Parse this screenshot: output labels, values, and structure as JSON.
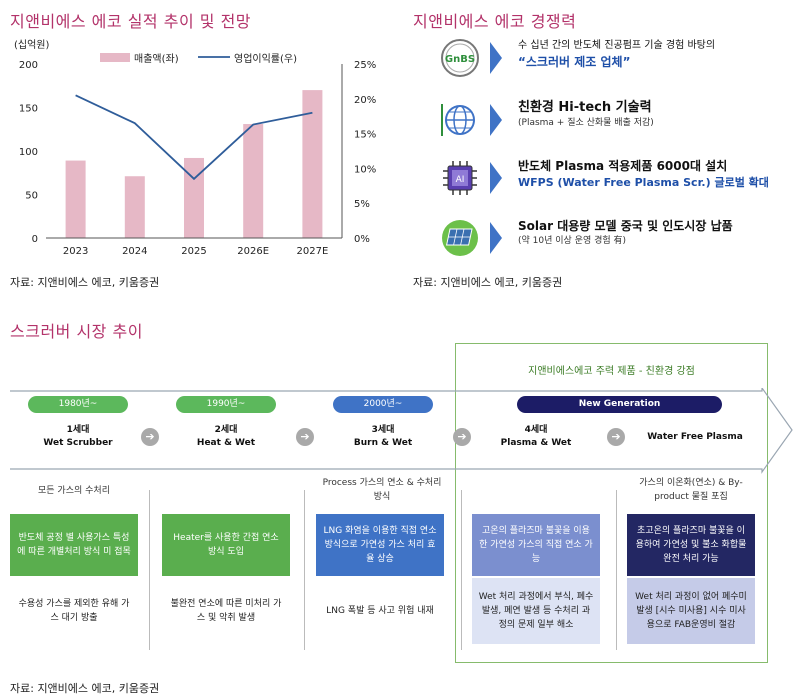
{
  "left_section": {
    "title": "지앤비에스 에코 실적 추이 및 전망",
    "source": "자료: 지앤비에스 에코, 키움증권"
  },
  "chart_data": {
    "type": "bar",
    "categories": [
      "2023",
      "2024",
      "2025",
      "2026E",
      "2027E"
    ],
    "series": [
      {
        "name": "매출액(좌)",
        "type": "bar",
        "axis": "left",
        "values": [
          89,
          71,
          92,
          131,
          170
        ],
        "color": "#e6b8c6"
      },
      {
        "name": "영업이익률(우)",
        "type": "line",
        "axis": "right",
        "values": [
          20.5,
          16.5,
          8.5,
          16.3,
          18.0
        ],
        "color": "#2f5d9a"
      }
    ],
    "left_unit": "(십억원)",
    "ylim_left": [
      0,
      200
    ],
    "yticks_left": [
      "0",
      "50",
      "100",
      "150",
      "200"
    ],
    "ylim_right": [
      0,
      25
    ],
    "yticks_right": [
      "0%",
      "5%",
      "10%",
      "15%",
      "20%",
      "25%"
    ],
    "grid": false,
    "legend_position": "top"
  },
  "right_section": {
    "title": "지앤비에스 에코 경쟁력",
    "source": "자료: 지앤비에스 에코, 키움증권",
    "items": [
      {
        "icon": "gnbs-logo-icon",
        "heading": "수 십년 간의 반도체 진공펌프 기술 경험 바탕의",
        "sub": "“스크러버 제조 업체”"
      },
      {
        "icon": "globe-icon",
        "heading": "친환경 Hi-tech 기술력",
        "sub": "(Plasma   + 질소 산화물 배출 저감)"
      },
      {
        "icon": "ai-chip-icon",
        "heading": "반도체 Plasma 적용제품 6000대 설치",
        "sub": "WFPS (Water Free Plasma Scr.) 글로벌 확대"
      },
      {
        "icon": "solar-panel-icon",
        "heading": "Solar 대용량 모델 중국 및 인도시장 납품",
        "sub": "(약 10년 이상 운영 경험 有)"
      }
    ]
  },
  "bottom_section": {
    "title": "스크러버 시장 추이",
    "source": "자료: 지앤비에스 에코, 키움증권",
    "highlight_label": "지앤비에스에코 주력 제품 - 친환경 강점",
    "generations": [
      {
        "period": "1980년~",
        "name_line1": "1세대",
        "name_line2": "Wet Scrubber",
        "color": "#5cb85c"
      },
      {
        "period": "1990년~",
        "name_line1": "2세대",
        "name_line2": "Heat & Wet",
        "color": "#5cb85c"
      },
      {
        "period": "2000년~",
        "name_line1": "3세대",
        "name_line2": "Burn & Wet",
        "color": "#3f73c6"
      },
      {
        "period": "",
        "name_line1": "4세대",
        "name_line2": "Plasma & Wet",
        "color": "#1c1c66"
      },
      {
        "period": "New Generation",
        "name_line1": "",
        "name_line2": "Water Free Plasma",
        "color": "#1c1c66"
      }
    ],
    "columns": [
      {
        "top": "모든 가스의 수처리",
        "box": "반도체 공정 별 사용가스 특성에 따른 개별처리 방식 미 접목",
        "bottom": "수용성 가스를 제외한 유해 가스 대기 방출",
        "box_color": "#5aae4e",
        "bottom_bg": "#ffffff"
      },
      {
        "top": "",
        "box": "Heater를 사용한 간접 연소 방식 도입",
        "bottom": "불완전 연소에 따른 미처리 가스 및 악취 발생",
        "box_color": "#5aae4e",
        "bottom_bg": "#ffffff"
      },
      {
        "top": "Process 가스의 연소 & 수처리 방식",
        "box": "LNG 화염을 이용한 직접 연소 방식으로 가연성 가스 처리 효율 상승",
        "bottom": "LNG 폭발 등 사고 위험 내재",
        "box_color": "#3f73c6",
        "bottom_bg": "#ffffff"
      },
      {
        "top": "",
        "box": "고온의 플라즈마 불꽃을 이용한 가연성 가스의 직접 연소 가능",
        "bottom": "Wet 처리 과정에서 부식, 폐수발생, 폐연 발생 등 수처리 과정의 문제 일부 해소",
        "box_color": "#7b8fcf",
        "bottom_bg": "#dde3f4"
      },
      {
        "top": "가스의 이온화(연소) & By-product 물질 포집",
        "box": "초고온의 플라즈마 불꽃을 이용하여 가연성 및 불소 화합물 완전 처리 가능",
        "bottom": "Wet 처리 과정이 없어 폐수미발생 [시수 미사용] 시수 미사용으로 FAB운영비 절감",
        "box_color": "#232763",
        "bottom_bg": "#c5cbe8"
      }
    ]
  }
}
